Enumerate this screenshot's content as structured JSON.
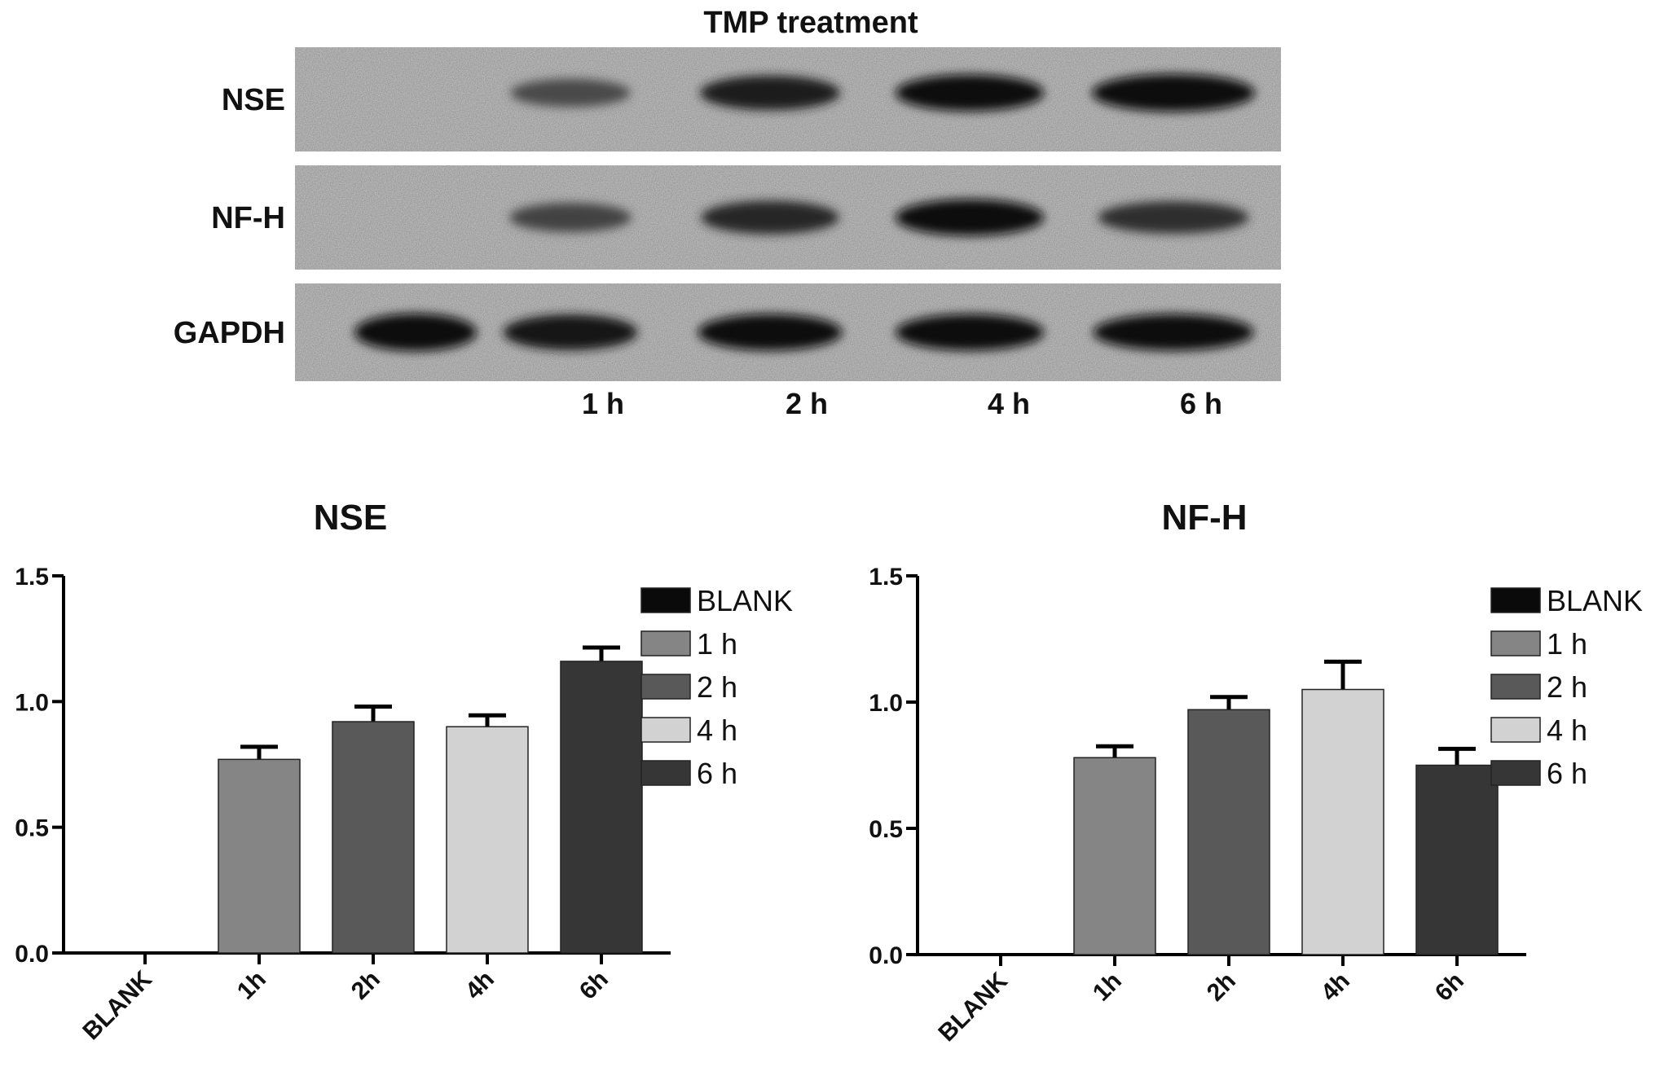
{
  "blot": {
    "title": "TMP treatment",
    "rows": [
      {
        "label": "NSE",
        "intensities": [
          0.0,
          0.55,
          0.85,
          0.95,
          1.0
        ]
      },
      {
        "label": "NF-H",
        "intensities": [
          0.0,
          0.6,
          0.8,
          0.95,
          0.75
        ]
      },
      {
        "label": "GAPDH",
        "intensities": [
          1.0,
          0.9,
          0.95,
          0.95,
          0.95
        ]
      }
    ],
    "lane_labels": [
      "",
      "1 h",
      "2 h",
      "4 h",
      "6 h"
    ]
  },
  "chart_data": [
    {
      "type": "bar",
      "title": "NSE",
      "categories": [
        "BLANK",
        "1h",
        "2h",
        "4h",
        "6h"
      ],
      "values": [
        0,
        0.77,
        0.92,
        0.9,
        1.16
      ],
      "errors": [
        0,
        0.05,
        0.06,
        0.045,
        0.055
      ],
      "ylim": [
        0,
        1.5
      ],
      "yticks": [
        "0.0",
        "0.5",
        "1.0",
        "1.5"
      ],
      "colors": [
        "#0a0a0a",
        "#858585",
        "#595959",
        "#d2d2d2",
        "#363636"
      ],
      "legend": [
        "BLANK",
        "1 h",
        "2 h",
        "4 h",
        "6 h"
      ],
      "legend_position": "right"
    },
    {
      "type": "bar",
      "title": "NF-H",
      "categories": [
        "BLANK",
        "1h",
        "2h",
        "4h",
        "6h"
      ],
      "values": [
        0,
        0.78,
        0.97,
        1.05,
        0.75
      ],
      "errors": [
        0,
        0.045,
        0.05,
        0.11,
        0.065
      ],
      "ylim": [
        0,
        1.5
      ],
      "yticks": [
        "0.0",
        "0.5",
        "1.0",
        "1.5"
      ],
      "colors": [
        "#0a0a0a",
        "#858585",
        "#595959",
        "#d2d2d2",
        "#363636"
      ],
      "legend": [
        "BLANK",
        "1 h",
        "2 h",
        "4 h",
        "6 h"
      ],
      "legend_position": "right"
    }
  ]
}
